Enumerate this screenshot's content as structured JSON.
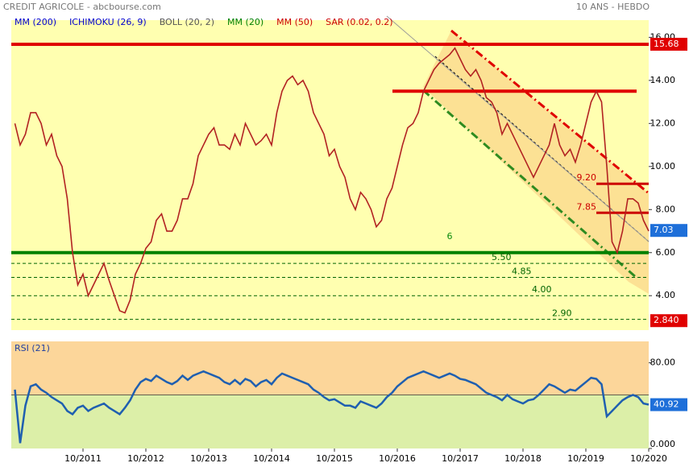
{
  "chart_data": {
    "type": "line",
    "title": "CREDIT AGRICOLE - abcbourse.com",
    "subtitle": "10 ANS - HEBDO",
    "legend": [
      {
        "text": "MM (200)",
        "color": "#0000cc"
      },
      {
        "text": "ICHIMOKU (26, 9)",
        "color": "#0000cc"
      },
      {
        "text": "BOLL (20, 2)",
        "color": "#555555"
      },
      {
        "text": "MM (20)",
        "color": "#008000"
      },
      {
        "text": "MM (50)",
        "color": "#cc0000"
      },
      {
        "text": "SAR (0.02, 0.2)",
        "color": "#cc0000"
      }
    ],
    "categories": [
      null,
      null,
      null,
      null,
      null,
      null,
      null,
      null,
      null,
      null,
      null,
      null,
      null,
      "10/2011",
      null,
      null,
      null,
      null,
      null,
      null,
      null,
      null,
      null,
      null,
      null,
      "10/2012",
      null,
      null,
      null,
      null,
      null,
      null,
      null,
      null,
      null,
      null,
      null,
      "10/2013",
      null,
      null,
      null,
      null,
      null,
      null,
      null,
      null,
      null,
      null,
      null,
      "10/2014",
      null,
      null,
      null,
      null,
      null,
      null,
      null,
      null,
      null,
      null,
      null,
      "10/2015",
      null,
      null,
      null,
      null,
      null,
      null,
      null,
      null,
      null,
      null,
      null,
      "10/2016",
      null,
      null,
      null,
      null,
      null,
      null,
      null,
      null,
      null,
      null,
      null,
      "10/2017",
      null,
      null,
      null,
      null,
      null,
      null,
      null,
      null,
      null,
      null,
      null,
      "10/2018",
      null,
      null,
      null,
      null,
      null,
      null,
      null,
      null,
      null,
      null,
      null,
      "10/2019",
      null,
      null,
      null,
      null,
      null,
      null,
      null,
      null,
      null,
      null,
      null,
      "10/2020"
    ],
    "series": [
      {
        "color": "#b22222",
        "values": [
          12.0,
          11.0,
          11.5,
          12.5,
          12.5,
          12.0,
          11.0,
          11.5,
          10.5,
          10.0,
          8.5,
          6.0,
          4.5,
          5.0,
          4.0,
          4.5,
          5.0,
          5.5,
          4.7,
          4.0,
          3.3,
          3.2,
          3.8,
          5.0,
          5.5,
          6.2,
          6.5,
          7.5,
          7.8,
          7.0,
          7.0,
          7.5,
          8.5,
          8.5,
          9.2,
          10.5,
          11.0,
          11.5,
          11.8,
          11.0,
          11.0,
          10.8,
          11.5,
          11.0,
          12.0,
          11.5,
          11.0,
          11.2,
          11.5,
          11.0,
          12.5,
          13.5,
          14.0,
          14.2,
          13.8,
          14.0,
          13.5,
          12.5,
          12.0,
          11.5,
          10.5,
          10.8,
          10.0,
          9.5,
          8.5,
          8.0,
          8.8,
          8.5,
          8.0,
          7.2,
          7.5,
          8.5,
          9.0,
          10.0,
          11.0,
          11.8,
          12.0,
          12.5,
          13.5,
          14.0,
          14.5,
          14.8,
          15.0,
          15.2,
          15.5,
          15.0,
          14.5,
          14.2,
          14.5,
          14.0,
          13.2,
          13.0,
          12.5,
          11.5,
          12.0,
          11.5,
          11.0,
          10.5,
          10.0,
          9.5,
          10.0,
          10.5,
          11.0,
          12.0,
          11.0,
          10.5,
          10.8,
          10.2,
          11.0,
          12.0,
          13.0,
          13.5,
          13.0,
          10.0,
          6.5,
          6.0,
          7.0,
          8.5,
          8.5,
          8.3,
          7.5,
          7.0
        ]
      }
    ],
    "ylim": [
      2.4,
      16.8
    ],
    "yticks": [
      {
        "value": 16,
        "label": "16.00"
      },
      {
        "value": 14,
        "label": "14.00"
      },
      {
        "value": 12,
        "label": "12.00"
      },
      {
        "value": 10,
        "label": "10.00"
      },
      {
        "value": 8,
        "label": "8.00"
      },
      {
        "value": 6,
        "label": "6.00"
      },
      {
        "value": 4,
        "label": "4.00"
      }
    ],
    "levels": [
      {
        "value": 15.68,
        "color": "#e00000",
        "style": "solid"
      },
      {
        "value": 13.5,
        "color": "#e00000",
        "style": "solid"
      },
      {
        "value": 6,
        "color": "#008000",
        "style": "solid"
      },
      {
        "value": 9.2,
        "label": "9.20",
        "color": "#cc0000",
        "style": "dashed"
      },
      {
        "value": 7.85,
        "label": "7.85",
        "color": "#cc0000",
        "style": "dashed"
      },
      {
        "value": 5.5,
        "label": "5.50",
        "color": "#006400",
        "style": "dashed"
      },
      {
        "value": 4.85,
        "label": "4.85",
        "color": "#006400",
        "style": "dashed"
      },
      {
        "value": 4,
        "label": "4.00",
        "color": "#006400",
        "style": "dashed"
      },
      {
        "value": 2.9,
        "label": "2.90",
        "color": "#006400",
        "style": "dashed"
      }
    ],
    "tags": [
      {
        "value": 15.68,
        "color": "#e00000"
      },
      {
        "value": 7.03,
        "color": "#1e6fd9"
      },
      {
        "value": 2.84,
        "label": "2.840",
        "color": "#e00000"
      }
    ],
    "big_annotation": {
      "text": "6",
      "value": 6
    },
    "rsi": {
      "title": "RSI (21)",
      "color": "#1f5fb0",
      "values": [
        55,
        5,
        40,
        58,
        60,
        55,
        52,
        48,
        45,
        42,
        35,
        32,
        38,
        40,
        35,
        38,
        40,
        42,
        38,
        35,
        32,
        38,
        45,
        55,
        62,
        65,
        63,
        68,
        65,
        62,
        60,
        63,
        68,
        64,
        68,
        70,
        72,
        70,
        68,
        66,
        62,
        60,
        64,
        60,
        65,
        63,
        58,
        62,
        64,
        60,
        66,
        70,
        68,
        66,
        64,
        62,
        60,
        55,
        52,
        48,
        45,
        46,
        43,
        40,
        40,
        38,
        44,
        42,
        40,
        38,
        42,
        48,
        52,
        58,
        62,
        66,
        68,
        70,
        72,
        70,
        68,
        66,
        68,
        70,
        68,
        65,
        64,
        62,
        60,
        56,
        52,
        50,
        48,
        45,
        50,
        46,
        44,
        42,
        45,
        46,
        50,
        55,
        60,
        58,
        55,
        52,
        55,
        54,
        58,
        62,
        66,
        65,
        60,
        30,
        35,
        40,
        45,
        48,
        50,
        48,
        42,
        41
      ],
      "ylim": [
        0,
        100
      ],
      "yticks": [
        {
          "value": 80,
          "label": "80.00"
        },
        {
          "value": 0,
          "label": "0.000"
        }
      ],
      "level": 50,
      "tag": 40.92
    }
  }
}
